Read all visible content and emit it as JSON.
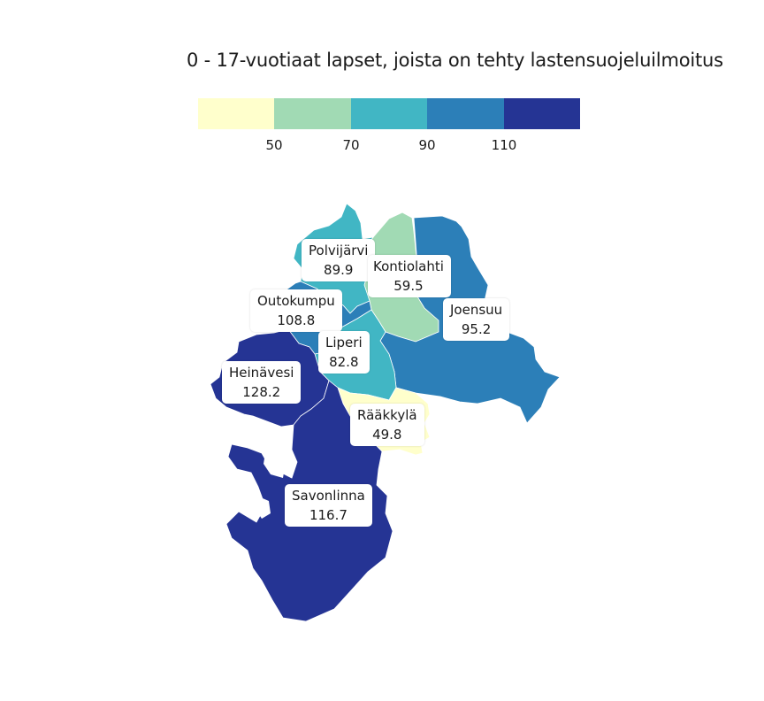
{
  "title": "0 - 17-vuotiaat lapset, joista on tehty lastensuojeluilmoitus",
  "legend": {
    "colors": [
      "#ffffcc",
      "#a1dab4",
      "#41b6c4",
      "#2c7fb8",
      "#253494"
    ],
    "ticks": [
      "50",
      "70",
      "90",
      "110"
    ]
  },
  "regions": [
    {
      "name": "Polvijärvi",
      "value": "89.9",
      "color": "#41b6c4"
    },
    {
      "name": "Kontiolahti",
      "value": "59.5",
      "color": "#a1dab4"
    },
    {
      "name": "Joensuu",
      "value": "95.2",
      "color": "#2c7fb8"
    },
    {
      "name": "Outokumpu",
      "value": "108.8",
      "color": "#2c7fb8"
    },
    {
      "name": "Liperi",
      "value": "82.8",
      "color": "#41b6c4"
    },
    {
      "name": "Heinävesi",
      "value": "128.2",
      "color": "#253494"
    },
    {
      "name": "Rääkkylä",
      "value": "49.8",
      "color": "#ffffcc"
    },
    {
      "name": "Savonlinna",
      "value": "116.7",
      "color": "#253494"
    }
  ]
}
